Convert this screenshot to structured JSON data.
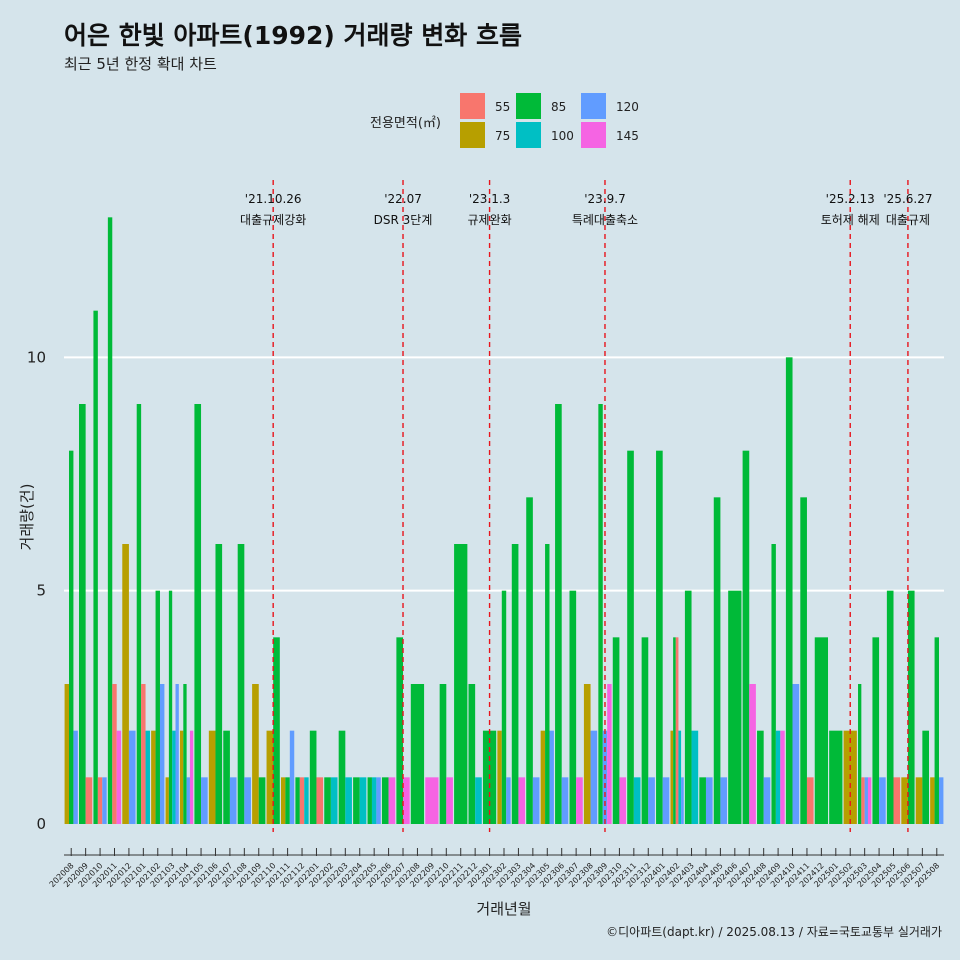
{
  "chart_data": {
    "type": "bar",
    "title": "어은 한빛 아파트(1992) 거래량 변화 흐름",
    "subtitle": "최근 5년 한정 확대 차트",
    "xlabel": "거래년월",
    "ylabel": "거래량(건)",
    "caption": "©디아파트(dapt.kr) / 2025.08.13 / 자료=국토교통부 실거래가",
    "ylim": [
      -0.6,
      13.8
    ],
    "yticks": [
      0,
      5,
      10
    ],
    "grid": true,
    "legend": {
      "title": "전용면적(㎡)",
      "placement": "top",
      "labels": [
        "55",
        "75",
        "85",
        "100",
        "120",
        "145"
      ]
    },
    "colors": {
      "55": "#f8766d",
      "75": "#b79f00",
      "85": "#00ba38",
      "100": "#00bfc4",
      "120": "#619cff",
      "145": "#f564e3",
      "annotation_line": "#e8141c",
      "background": "#d5e4eb",
      "gridline": "#ffffff"
    },
    "series_order": [
      "75",
      "85",
      "55",
      "100",
      "120",
      "145"
    ],
    "categories": [
      "202008",
      "202009",
      "202010",
      "202011",
      "202012",
      "202101",
      "202102",
      "202103",
      "202104",
      "202105",
      "202106",
      "202107",
      "202108",
      "202109",
      "202110",
      "202111",
      "202112",
      "202201",
      "202202",
      "202203",
      "202204",
      "202205",
      "202206",
      "202207",
      "202208",
      "202209",
      "202210",
      "202211",
      "202212",
      "202301",
      "202302",
      "202303",
      "202304",
      "202305",
      "202306",
      "202307",
      "202308",
      "202309",
      "202310",
      "202311",
      "202312",
      "202401",
      "202402",
      "202403",
      "202404",
      "202405",
      "202406",
      "202407",
      "202408",
      "202409",
      "202410",
      "202411",
      "202412",
      "202501",
      "202502",
      "202503",
      "202504",
      "202505",
      "202506",
      "202507",
      "202508"
    ],
    "x_tick_labels": [
      "202008",
      "202009",
      "202010",
      "202011",
      "202012",
      "202101",
      "202102",
      "202103",
      "202104",
      "202105",
      "202106",
      "202107",
      "202108",
      "202109",
      "202110",
      "202111",
      "202112",
      "202201",
      "202202",
      "202203",
      "202204",
      "202205",
      "202206",
      "202207",
      "202208",
      "202209",
      "202210",
      "202211",
      "202212",
      "202301",
      "202302",
      "202303",
      "202304",
      "202305",
      "202306",
      "202307",
      "202308",
      "202309",
      "202310",
      "202311",
      "202312",
      "202401",
      "202402",
      "202403",
      "202404",
      "202405",
      "202406",
      "202407",
      "202408",
      "202409",
      "202410",
      "202411",
      "202412",
      "202501",
      "202502",
      "202503",
      "202504",
      "202505",
      "202506",
      "202507",
      "202508"
    ],
    "series": [
      {
        "name": "55",
        "values": [
          0,
          1,
          1,
          3,
          0,
          3,
          0,
          0,
          0,
          0,
          0,
          0,
          0,
          0,
          0,
          0,
          1,
          1,
          0,
          0,
          0,
          0,
          0,
          0,
          0,
          0,
          0,
          0,
          0,
          0,
          0,
          0,
          0,
          0,
          0,
          0,
          0,
          0,
          0,
          0,
          0,
          0,
          4,
          0,
          0,
          0,
          0,
          0,
          0,
          0,
          0,
          1,
          0,
          0,
          0,
          1,
          0,
          1,
          0,
          0,
          0
        ]
      },
      {
        "name": "75",
        "values": [
          3,
          0,
          0,
          0,
          6,
          0,
          2,
          1,
          2,
          0,
          2,
          0,
          0,
          3,
          2,
          1,
          0,
          0,
          0,
          0,
          0,
          0,
          0,
          0,
          0,
          0,
          0,
          0,
          0,
          0,
          2,
          0,
          0,
          2,
          0,
          0,
          3,
          0,
          0,
          0,
          0,
          0,
          2,
          0,
          0,
          0,
          0,
          0,
          0,
          0,
          0,
          0,
          0,
          0,
          2,
          0,
          0,
          0,
          1,
          1,
          1
        ]
      },
      {
        "name": "85",
        "values": [
          8,
          9,
          11,
          13,
          0,
          9,
          5,
          5,
          3,
          9,
          6,
          2,
          6,
          1,
          4,
          1,
          1,
          2,
          1,
          2,
          1,
          1,
          1,
          4,
          3,
          0,
          3,
          6,
          3,
          2,
          5,
          6,
          7,
          6,
          9,
          5,
          0,
          9,
          4,
          8,
          4,
          8,
          4,
          5,
          1,
          7,
          5,
          8,
          2,
          6,
          10,
          7,
          4,
          2,
          0,
          3,
          4,
          5,
          5,
          2,
          4
        ]
      },
      {
        "name": "100",
        "values": [
          0,
          0,
          0,
          0,
          0,
          2,
          0,
          2,
          0,
          0,
          0,
          0,
          0,
          0,
          0,
          0,
          1,
          0,
          1,
          1,
          1,
          1,
          0,
          0,
          0,
          0,
          0,
          0,
          1,
          0,
          0,
          0,
          0,
          0,
          0,
          0,
          0,
          0,
          0,
          1,
          0,
          0,
          2,
          2,
          0,
          0,
          0,
          0,
          0,
          2,
          0,
          0,
          0,
          0,
          0,
          0,
          0,
          0,
          0,
          0,
          0
        ]
      },
      {
        "name": "120",
        "values": [
          2,
          0,
          1,
          0,
          2,
          0,
          3,
          3,
          1,
          1,
          0,
          1,
          1,
          0,
          0,
          2,
          0,
          0,
          0,
          0,
          0,
          1,
          0,
          0,
          0,
          0,
          0,
          0,
          0,
          0,
          1,
          0,
          1,
          2,
          1,
          0,
          2,
          2,
          0,
          0,
          1,
          1,
          1,
          0,
          1,
          1,
          0,
          0,
          1,
          0,
          3,
          0,
          0,
          0,
          0,
          1,
          1,
          0,
          0,
          0,
          1
        ]
      },
      {
        "name": "145",
        "values": [
          0,
          0,
          0,
          2,
          0,
          0,
          0,
          0,
          2,
          0,
          0,
          0,
          0,
          0,
          0,
          0,
          0,
          0,
          0,
          0,
          0,
          0,
          1,
          1,
          0,
          1,
          1,
          0,
          0,
          0,
          0,
          1,
          0,
          0,
          0,
          1,
          0,
          3,
          1,
          0,
          0,
          0,
          0,
          0,
          0,
          0,
          0,
          3,
          0,
          2,
          0,
          0,
          0,
          0,
          0,
          1,
          0,
          0,
          0,
          0,
          0
        ]
      }
    ],
    "annotations": [
      {
        "date_label": "'21.10.26",
        "event": "대출규제강화",
        "x": "202110"
      },
      {
        "date_label": "'22.07",
        "event": "DSR 3단계",
        "x": "202207"
      },
      {
        "date_label": "'23.1.3",
        "event": "규제완화",
        "x": "202301"
      },
      {
        "date_label": "'23.9.7",
        "event": "특례대출축소",
        "x": "202309"
      },
      {
        "date_label": "'25.2.13",
        "event": "토허제 해제",
        "x": "202502"
      },
      {
        "date_label": "'25.6.27",
        "event": "대출규제",
        "x": "202506"
      }
    ]
  }
}
